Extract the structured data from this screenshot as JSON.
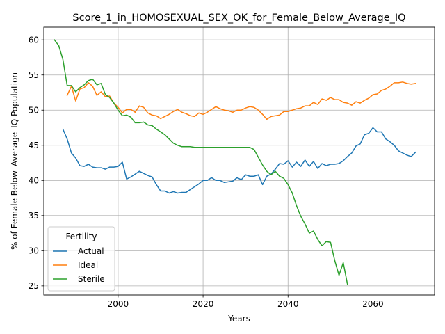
{
  "chart_data": {
    "type": "line",
    "title": "Score_1_in_HOMOSEXUAL_SEX_OK_for_Female_Below_Average_IQ",
    "xlabel": "Years",
    "ylabel": "% of Female Below_Average_IQ Population",
    "xlim": [
      1982.5,
      2074.5
    ],
    "ylim": [
      23.7,
      61.8
    ],
    "xticks": [
      2000,
      2020,
      2040,
      2060
    ],
    "xtick_labels": [
      "2000",
      "2020",
      "2040",
      "2060"
    ],
    "yticks": [
      25,
      30,
      35,
      40,
      45,
      50,
      55,
      60
    ],
    "ytick_labels": [
      "25",
      "30",
      "35",
      "40",
      "45",
      "50",
      "55",
      "60"
    ],
    "grid": true,
    "legend": {
      "title": "Fertility",
      "placement": "lower-left"
    },
    "series": [
      {
        "name": "Actual",
        "color": "#1f77b4",
        "x": [
          1987,
          1988,
          1989,
          1990,
          1991,
          1992,
          1993,
          1994,
          1995,
          1996,
          1997,
          1998,
          1999,
          2000,
          2001,
          2002,
          2003,
          2004,
          2005,
          2006,
          2007,
          2008,
          2009,
          2010,
          2011,
          2012,
          2013,
          2014,
          2015,
          2016,
          2017,
          2018,
          2019,
          2020,
          2021,
          2022,
          2023,
          2024,
          2025,
          2026,
          2027,
          2028,
          2029,
          2030,
          2031,
          2032,
          2033,
          2034,
          2035,
          2036,
          2037,
          2038,
          2039,
          2040,
          2041,
          2042,
          2043,
          2044,
          2045,
          2046,
          2047,
          2048,
          2049,
          2050,
          2051,
          2052,
          2053,
          2054,
          2055,
          2056,
          2057,
          2058,
          2059,
          2060,
          2061,
          2062,
          2063,
          2064,
          2065,
          2066,
          2067,
          2068,
          2069,
          2070
        ],
        "y": [
          47.3,
          45.9,
          43.9,
          43.2,
          42.1,
          42.0,
          42.3,
          41.9,
          41.8,
          41.8,
          41.6,
          41.9,
          41.9,
          42.0,
          42.6,
          40.2,
          40.5,
          40.9,
          41.3,
          41.0,
          40.7,
          40.5,
          39.4,
          38.5,
          38.5,
          38.2,
          38.4,
          38.2,
          38.3,
          38.3,
          38.7,
          39.1,
          39.5,
          40.0,
          40.0,
          40.4,
          40.0,
          40.0,
          39.7,
          39.8,
          39.9,
          40.4,
          40.1,
          40.8,
          40.6,
          40.6,
          40.8,
          39.4,
          40.6,
          40.9,
          41.6,
          42.4,
          42.3,
          42.8,
          41.9,
          42.6,
          42.0,
          42.9,
          42.0,
          42.7,
          41.7,
          42.4,
          42.1,
          42.3,
          42.3,
          42.4,
          42.8,
          43.4,
          43.9,
          44.9,
          45.2,
          46.5,
          46.7,
          47.5,
          46.9,
          46.9,
          45.9,
          45.5,
          45.0,
          44.2,
          43.9,
          43.6,
          43.4,
          44.0
        ]
      },
      {
        "name": "Ideal",
        "color": "#ff7f0e",
        "x": [
          1987,
          1988,
          1989,
          1990,
          1991,
          1992,
          1993,
          1994,
          1995,
          1996,
          1997,
          1998,
          1999,
          2000,
          2001,
          2002,
          2003,
          2004,
          2005,
          2006,
          2007,
          2008,
          2009,
          2010,
          2011,
          2012,
          2013,
          2014,
          2015,
          2016,
          2017,
          2018,
          2019,
          2020,
          2021,
          2022,
          2023,
          2024,
          2025,
          2026,
          2027,
          2028,
          2029,
          2030,
          2031,
          2032,
          2033,
          2034,
          2035,
          2036,
          2037,
          2038,
          2039,
          2040,
          2041,
          2042,
          2043,
          2044,
          2045,
          2046,
          2047,
          2048,
          2049,
          2050,
          2051,
          2052,
          2053,
          2054,
          2055,
          2056,
          2057,
          2058,
          2059,
          2060,
          2061,
          2062,
          2063,
          2064,
          2065,
          2066,
          2067,
          2068,
          2069,
          2070
        ],
        "y": [
          null,
          52.1,
          53.4,
          51.3,
          53.0,
          53.2,
          53.9,
          53.4,
          52.1,
          52.6,
          51.9,
          52.0,
          51.0,
          50.4,
          49.6,
          50.1,
          50.1,
          49.7,
          50.6,
          50.4,
          49.6,
          49.3,
          49.2,
          48.8,
          49.1,
          49.4,
          49.8,
          50.1,
          49.7,
          49.5,
          49.2,
          49.1,
          49.6,
          49.4,
          49.7,
          50.1,
          50.5,
          50.2,
          50.0,
          49.9,
          49.7,
          50.0,
          50.0,
          50.3,
          50.5,
          50.4,
          50.0,
          49.4,
          48.7,
          49.1,
          49.2,
          49.3,
          49.8,
          49.8,
          50.0,
          50.2,
          50.3,
          50.6,
          50.6,
          51.1,
          50.8,
          51.6,
          51.4,
          51.8,
          51.5,
          51.5,
          51.1,
          51.0,
          50.7,
          51.2,
          51.0,
          51.4,
          51.7,
          52.2,
          52.3,
          52.8,
          53.0,
          53.4,
          53.9,
          53.9,
          54.0,
          53.8,
          53.7,
          53.8
        ]
      },
      {
        "name": "Sterile",
        "color": "#2ca02c",
        "x": [
          1985,
          1986,
          1987,
          1988,
          1989,
          1990,
          1991,
          1992,
          1993,
          1994,
          1995,
          1996,
          1997,
          1998,
          1999,
          2000,
          2001,
          2002,
          2003,
          2004,
          2005,
          2006,
          2007,
          2008,
          2009,
          2010,
          2011,
          2012,
          2013,
          2014,
          2015,
          2016,
          2017,
          2018,
          2019,
          2020,
          2021,
          2022,
          2023,
          2024,
          2025,
          2026,
          2027,
          2028,
          2029,
          2030,
          2031,
          2032,
          2033,
          2034,
          2035,
          2036,
          2037,
          2038,
          2039,
          2040,
          2041,
          2042,
          2043,
          2044,
          2045,
          2046,
          2047,
          2048,
          2049,
          2050,
          2051,
          2052,
          2053,
          2054
        ],
        "y": [
          60.0,
          59.2,
          57.2,
          53.5,
          53.5,
          52.6,
          53.2,
          53.6,
          54.2,
          54.4,
          53.6,
          53.8,
          52.2,
          51.8,
          51.0,
          50.0,
          49.2,
          49.3,
          49.0,
          48.2,
          48.2,
          48.3,
          47.9,
          47.8,
          47.3,
          46.9,
          46.5,
          45.9,
          45.3,
          45.0,
          44.8,
          44.8,
          44.8,
          44.7,
          44.7,
          44.7,
          44.7,
          44.7,
          44.7,
          44.7,
          44.7,
          44.7,
          44.7,
          44.7,
          44.7,
          44.7,
          44.7,
          44.4,
          43.3,
          42.2,
          41.3,
          40.8,
          41.3,
          40.6,
          40.3,
          39.4,
          38.2,
          36.4,
          34.9,
          33.8,
          32.5,
          32.8,
          31.6,
          30.7,
          31.3,
          31.2,
          28.6,
          26.5,
          28.3,
          25.2
        ]
      }
    ]
  }
}
